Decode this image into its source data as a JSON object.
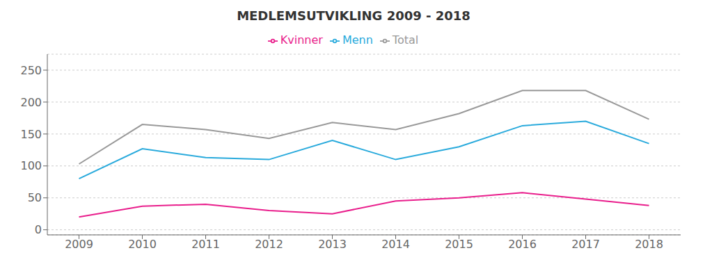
{
  "chart_data": {
    "type": "line",
    "title": "MEDLEMSUTVIKLING 2009 - 2018",
    "x": [
      2009,
      2010,
      2011,
      2012,
      2013,
      2014,
      2015,
      2016,
      2017,
      2018
    ],
    "series": [
      {
        "name": "Kvinner",
        "color": "#e91e8c",
        "values": [
          20,
          37,
          40,
          30,
          25,
          45,
          50,
          58,
          48,
          38
        ]
      },
      {
        "name": "Menn",
        "color": "#29aadc",
        "values": [
          80,
          127,
          113,
          110,
          140,
          110,
          130,
          163,
          170,
          135
        ]
      },
      {
        "name": "Total",
        "color": "#999999",
        "values": [
          103,
          165,
          157,
          143,
          168,
          157,
          182,
          218,
          218,
          173
        ]
      }
    ],
    "xlim": [
      2008.5,
      2018.5
    ],
    "xticks": [
      2009,
      2010,
      2011,
      2012,
      2013,
      2014,
      2015,
      2016,
      2017,
      2018
    ],
    "ylim": [
      -8,
      275
    ],
    "yticks": [
      0,
      50,
      100,
      150,
      200,
      250
    ],
    "grid": "y",
    "legend": "top"
  }
}
